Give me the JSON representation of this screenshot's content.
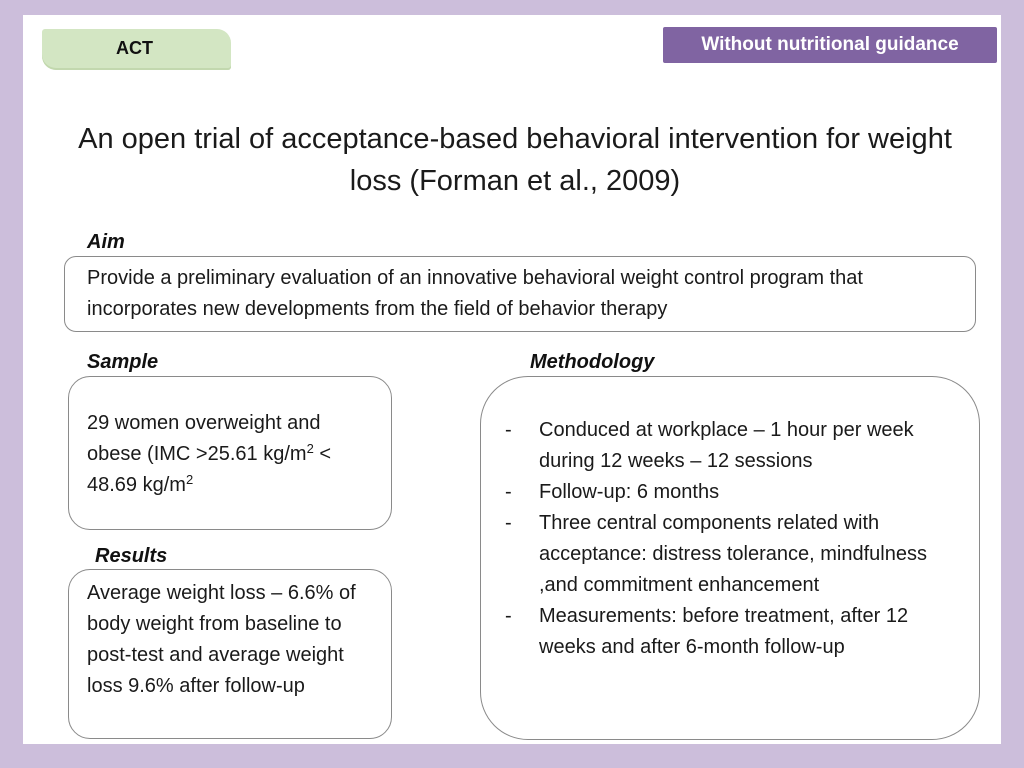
{
  "header": {
    "act_tag": "ACT",
    "guidance_tag": "Without nutritional guidance"
  },
  "title": {
    "line1": "An open trial of acceptance-based behavioral intervention for weight",
    "line2": "loss (Forman et al., 2009)"
  },
  "aim": {
    "label": "Aim",
    "text": "Provide a preliminary evaluation of an innovative behavioral weight control program that incorporates new developments from the field of behavior therapy"
  },
  "sample": {
    "label": "Sample",
    "text_part1": "29 women overweight and obese (IMC >25.61 kg/m",
    "sup1": "2",
    "text_part2": " < 48.69 kg/m",
    "sup2": "2"
  },
  "results": {
    "label": "Results",
    "text": "Average  weight loss – 6.6% of body weight  from baseline to post-test and average weight loss 9.6% after follow-up"
  },
  "methodology": {
    "label": "Methodology",
    "bullet": "-",
    "items": [
      "Conduced at workplace – 1 hour per week during 12 weeks – 12 sessions",
      "Follow-up: 6 months",
      "Three central components related with acceptance: distress tolerance, mindfulness ,and commitment enhancement",
      "Measurements: before treatment, after 12 weeks and after 6-month follow-up"
    ]
  }
}
